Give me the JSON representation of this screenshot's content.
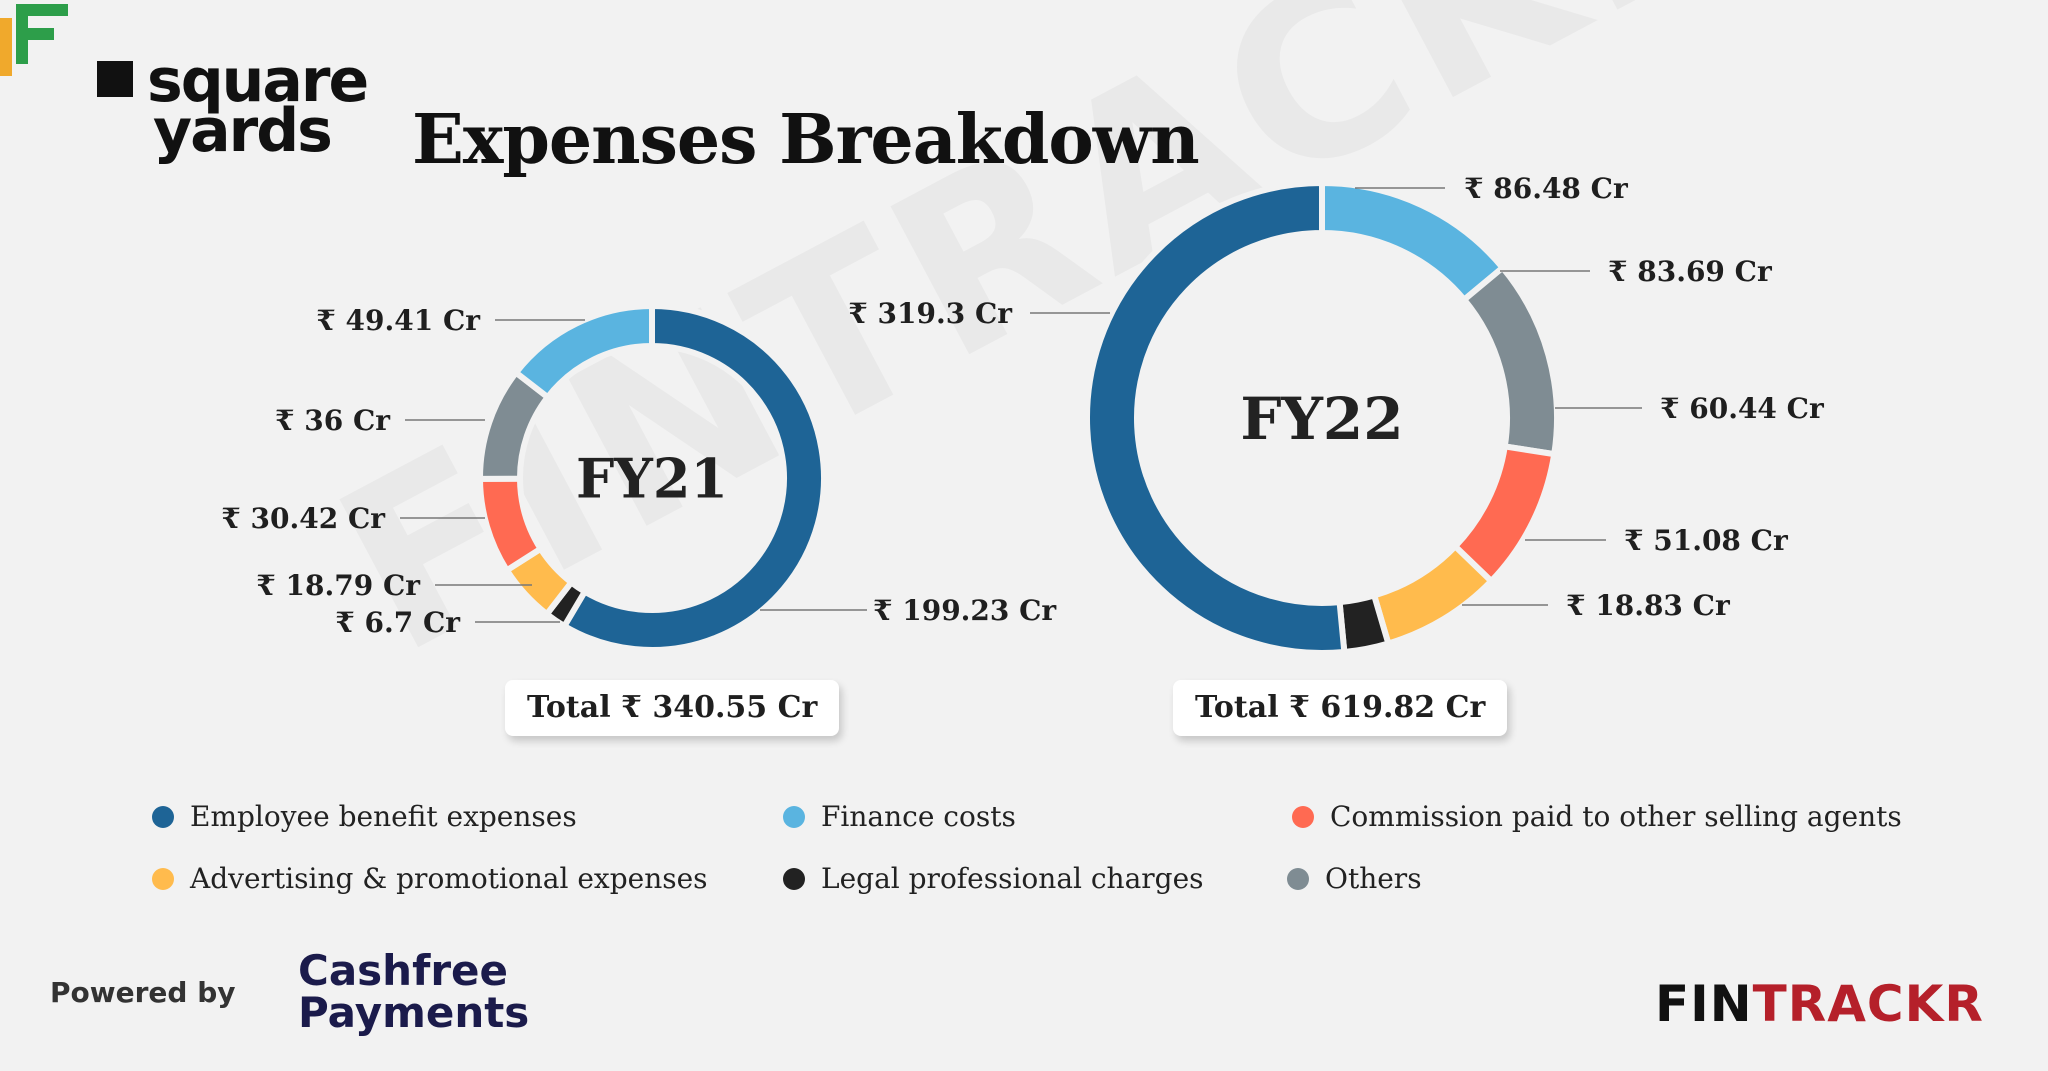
{
  "brand": {
    "line1": "square",
    "line2": "yards"
  },
  "title": "Expenses Breakdown",
  "watermark": "FINTRACKR",
  "colors": {
    "Employee benefit expenses": "#1e6496",
    "Finance costs": "#5ab4e0",
    "Others": "#7f8c93",
    "Commission paid to other selling agents": "#ff6a52",
    "Advertising & promotional expenses": "#ffbb4d",
    "Legal professional charges": "#222222"
  },
  "chart_data": [
    {
      "type": "pie",
      "center_label": "FY21",
      "total": "Total ₹ 340.55 Cr",
      "slices": [
        {
          "name": "Employee benefit expenses",
          "value": 199.23,
          "label": "₹ 199.23 Cr"
        },
        {
          "name": "Legal professional charges",
          "value": 6.7,
          "label": "₹ 6.7 Cr"
        },
        {
          "name": "Advertising & promotional expenses",
          "value": 18.79,
          "label": "₹ 18.79 Cr"
        },
        {
          "name": "Commission paid to other selling agents",
          "value": 30.42,
          "label": "₹ 30.42 Cr"
        },
        {
          "name": "Others",
          "value": 36,
          "label": "₹ 36 Cr"
        },
        {
          "name": "Finance costs",
          "value": 49.41,
          "label": "₹ 49.41 Cr"
        }
      ]
    },
    {
      "type": "pie",
      "center_label": "FY22",
      "total": "Total ₹ 619.82 Cr",
      "slices": [
        {
          "name": "Finance costs",
          "value": 86.48,
          "label": "₹ 86.48 Cr"
        },
        {
          "name": "Others",
          "value": 83.69,
          "label": "₹ 83.69 Cr"
        },
        {
          "name": "Commission paid to other selling agents",
          "value": 60.44,
          "label": "₹ 60.44 Cr"
        },
        {
          "name": "Advertising & promotional expenses",
          "value": 51.08,
          "label": "₹ 51.08 Cr"
        },
        {
          "name": "Legal professional charges",
          "value": 18.83,
          "label": "₹ 18.83 Cr"
        },
        {
          "name": "Employee benefit expenses",
          "value": 319.3,
          "label": "₹ 319.3 Cr"
        }
      ]
    }
  ],
  "legend": [
    {
      "label": "Employee benefit expenses",
      "color": "#1e6496"
    },
    {
      "label": "Finance costs",
      "color": "#5ab4e0"
    },
    {
      "label": "Commission paid to other selling agents",
      "color": "#ff6a52"
    },
    {
      "label": "Advertising & promotional expenses",
      "color": "#ffbb4d"
    },
    {
      "label": "Legal professional charges",
      "color": "#222222"
    },
    {
      "label": "Others",
      "color": "#7f8c93"
    }
  ],
  "footer": {
    "powered_by": "Powered by",
    "sponsor_line1": "Cashfree",
    "sponsor_line2": "Payments",
    "fintrackr_part1": "FIN",
    "fintrackr_part2": "TRACKR"
  }
}
